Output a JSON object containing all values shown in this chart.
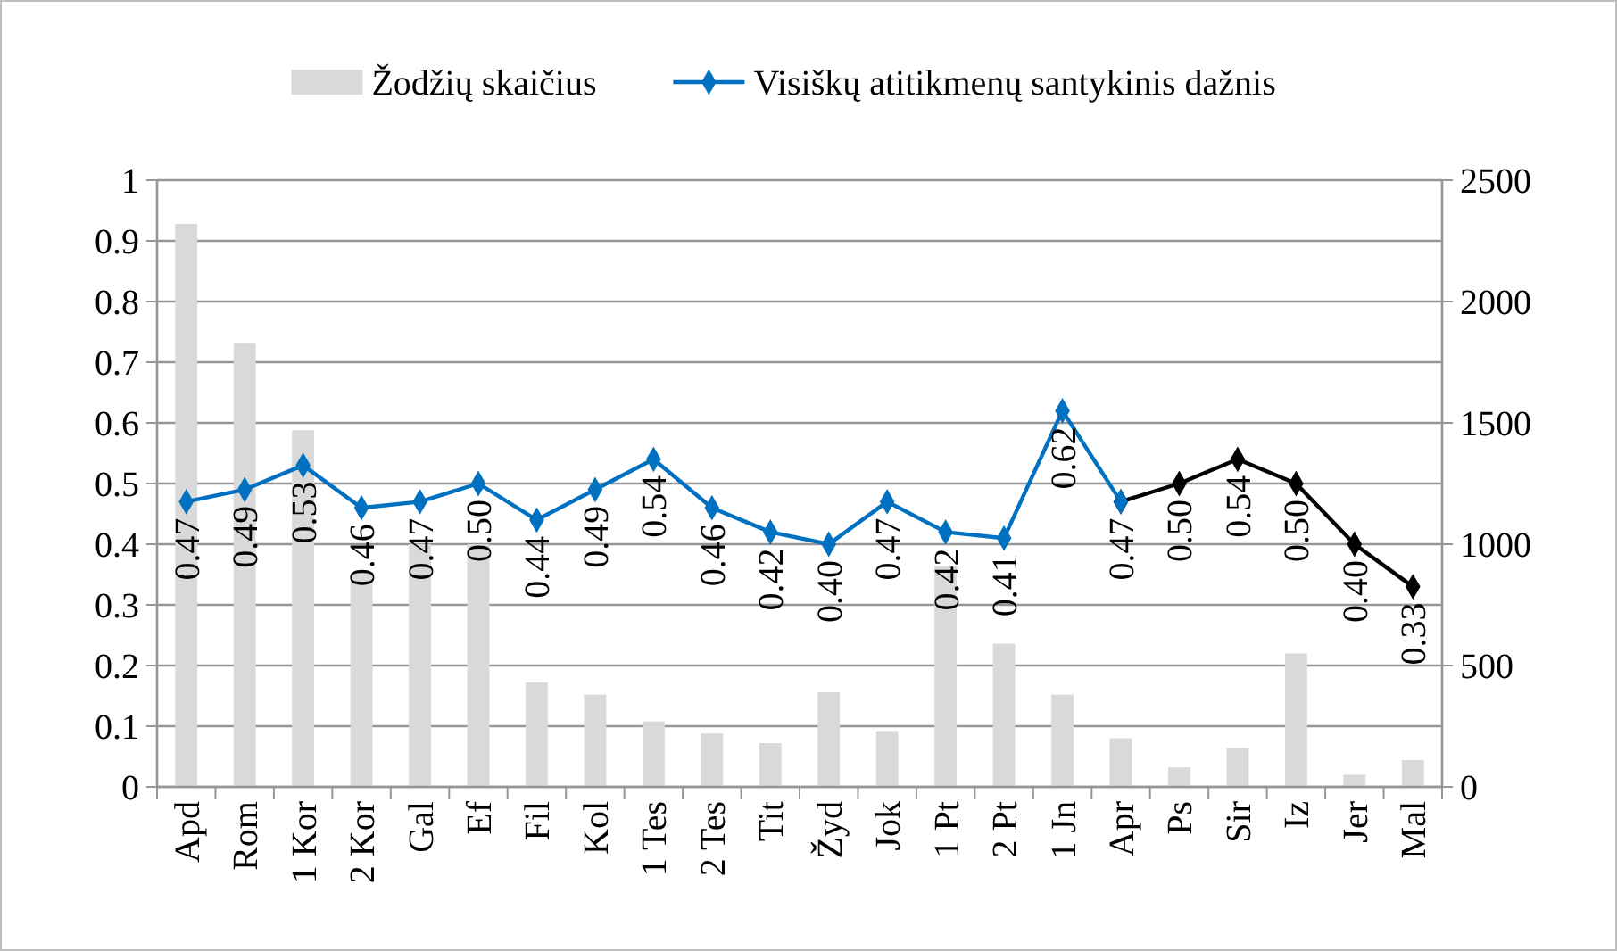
{
  "chart_data": {
    "type": "bar",
    "categories": [
      "Apd",
      "Rom",
      "1 Kor",
      "2 Kor",
      "Gal",
      "Ef",
      "Fil",
      "Kol",
      "1 Tes",
      "2 Tes",
      "Tit",
      "Žyd",
      "Jok",
      "1 Pt",
      "2 Pt",
      "1 Jn",
      "Apr",
      "Ps",
      "Sir",
      "Iz",
      "Jer",
      "Mal"
    ],
    "series": [
      {
        "name": "Žodžių skaičius",
        "axis": "y2",
        "color": "#d9d9d9",
        "values": [
          2320,
          1830,
          1470,
          880,
          1000,
          1000,
          430,
          380,
          270,
          220,
          180,
          390,
          230,
          910,
          590,
          380,
          200,
          80,
          160,
          550,
          50,
          110
        ]
      },
      {
        "type": "line",
        "color": "#000000",
        "values": [
          null,
          null,
          null,
          null,
          null,
          null,
          null,
          null,
          null,
          null,
          null,
          null,
          null,
          null,
          null,
          null,
          0.47,
          0.5,
          0.54,
          0.5,
          0.4,
          0.33
        ],
        "value_labels": [
          null,
          null,
          null,
          null,
          null,
          null,
          null,
          null,
          null,
          null,
          null,
          null,
          null,
          null,
          null,
          null,
          null,
          "0.50",
          "0.54",
          "0.50",
          "0.40",
          "0.33"
        ]
      },
      {
        "name": "Visiškų atitikmenų santykinis dažnis",
        "type": "line",
        "color": "#0070c0",
        "values": [
          0.47,
          0.49,
          0.53,
          0.46,
          0.47,
          0.5,
          0.44,
          0.49,
          0.54,
          0.46,
          0.42,
          0.4,
          0.47,
          0.42,
          0.41,
          0.62,
          0.47,
          null,
          null,
          null,
          null,
          null
        ],
        "value_labels": [
          "0.47",
          "0.49",
          "0.53",
          "0.46",
          "0.47",
          "0.50",
          "0.44",
          "0.49",
          "0.54",
          "0.46",
          "0.42",
          "0.40",
          "0.47",
          "0.42",
          "0.41",
          "0.62",
          "0.47",
          null,
          null,
          null,
          null,
          null
        ]
      }
    ],
    "ylim": [
      0,
      1
    ],
    "yticks": [
      0,
      0.1,
      0.2,
      0.3,
      0.4,
      0.5,
      0.6,
      0.7,
      0.8,
      0.9,
      1
    ],
    "y2lim": [
      0,
      2500
    ],
    "y2ticks": [
      0,
      500,
      1000,
      1500,
      2000,
      2500
    ],
    "grid": "y",
    "legend": "top",
    "marker": "diamond",
    "line_style": "solid"
  }
}
